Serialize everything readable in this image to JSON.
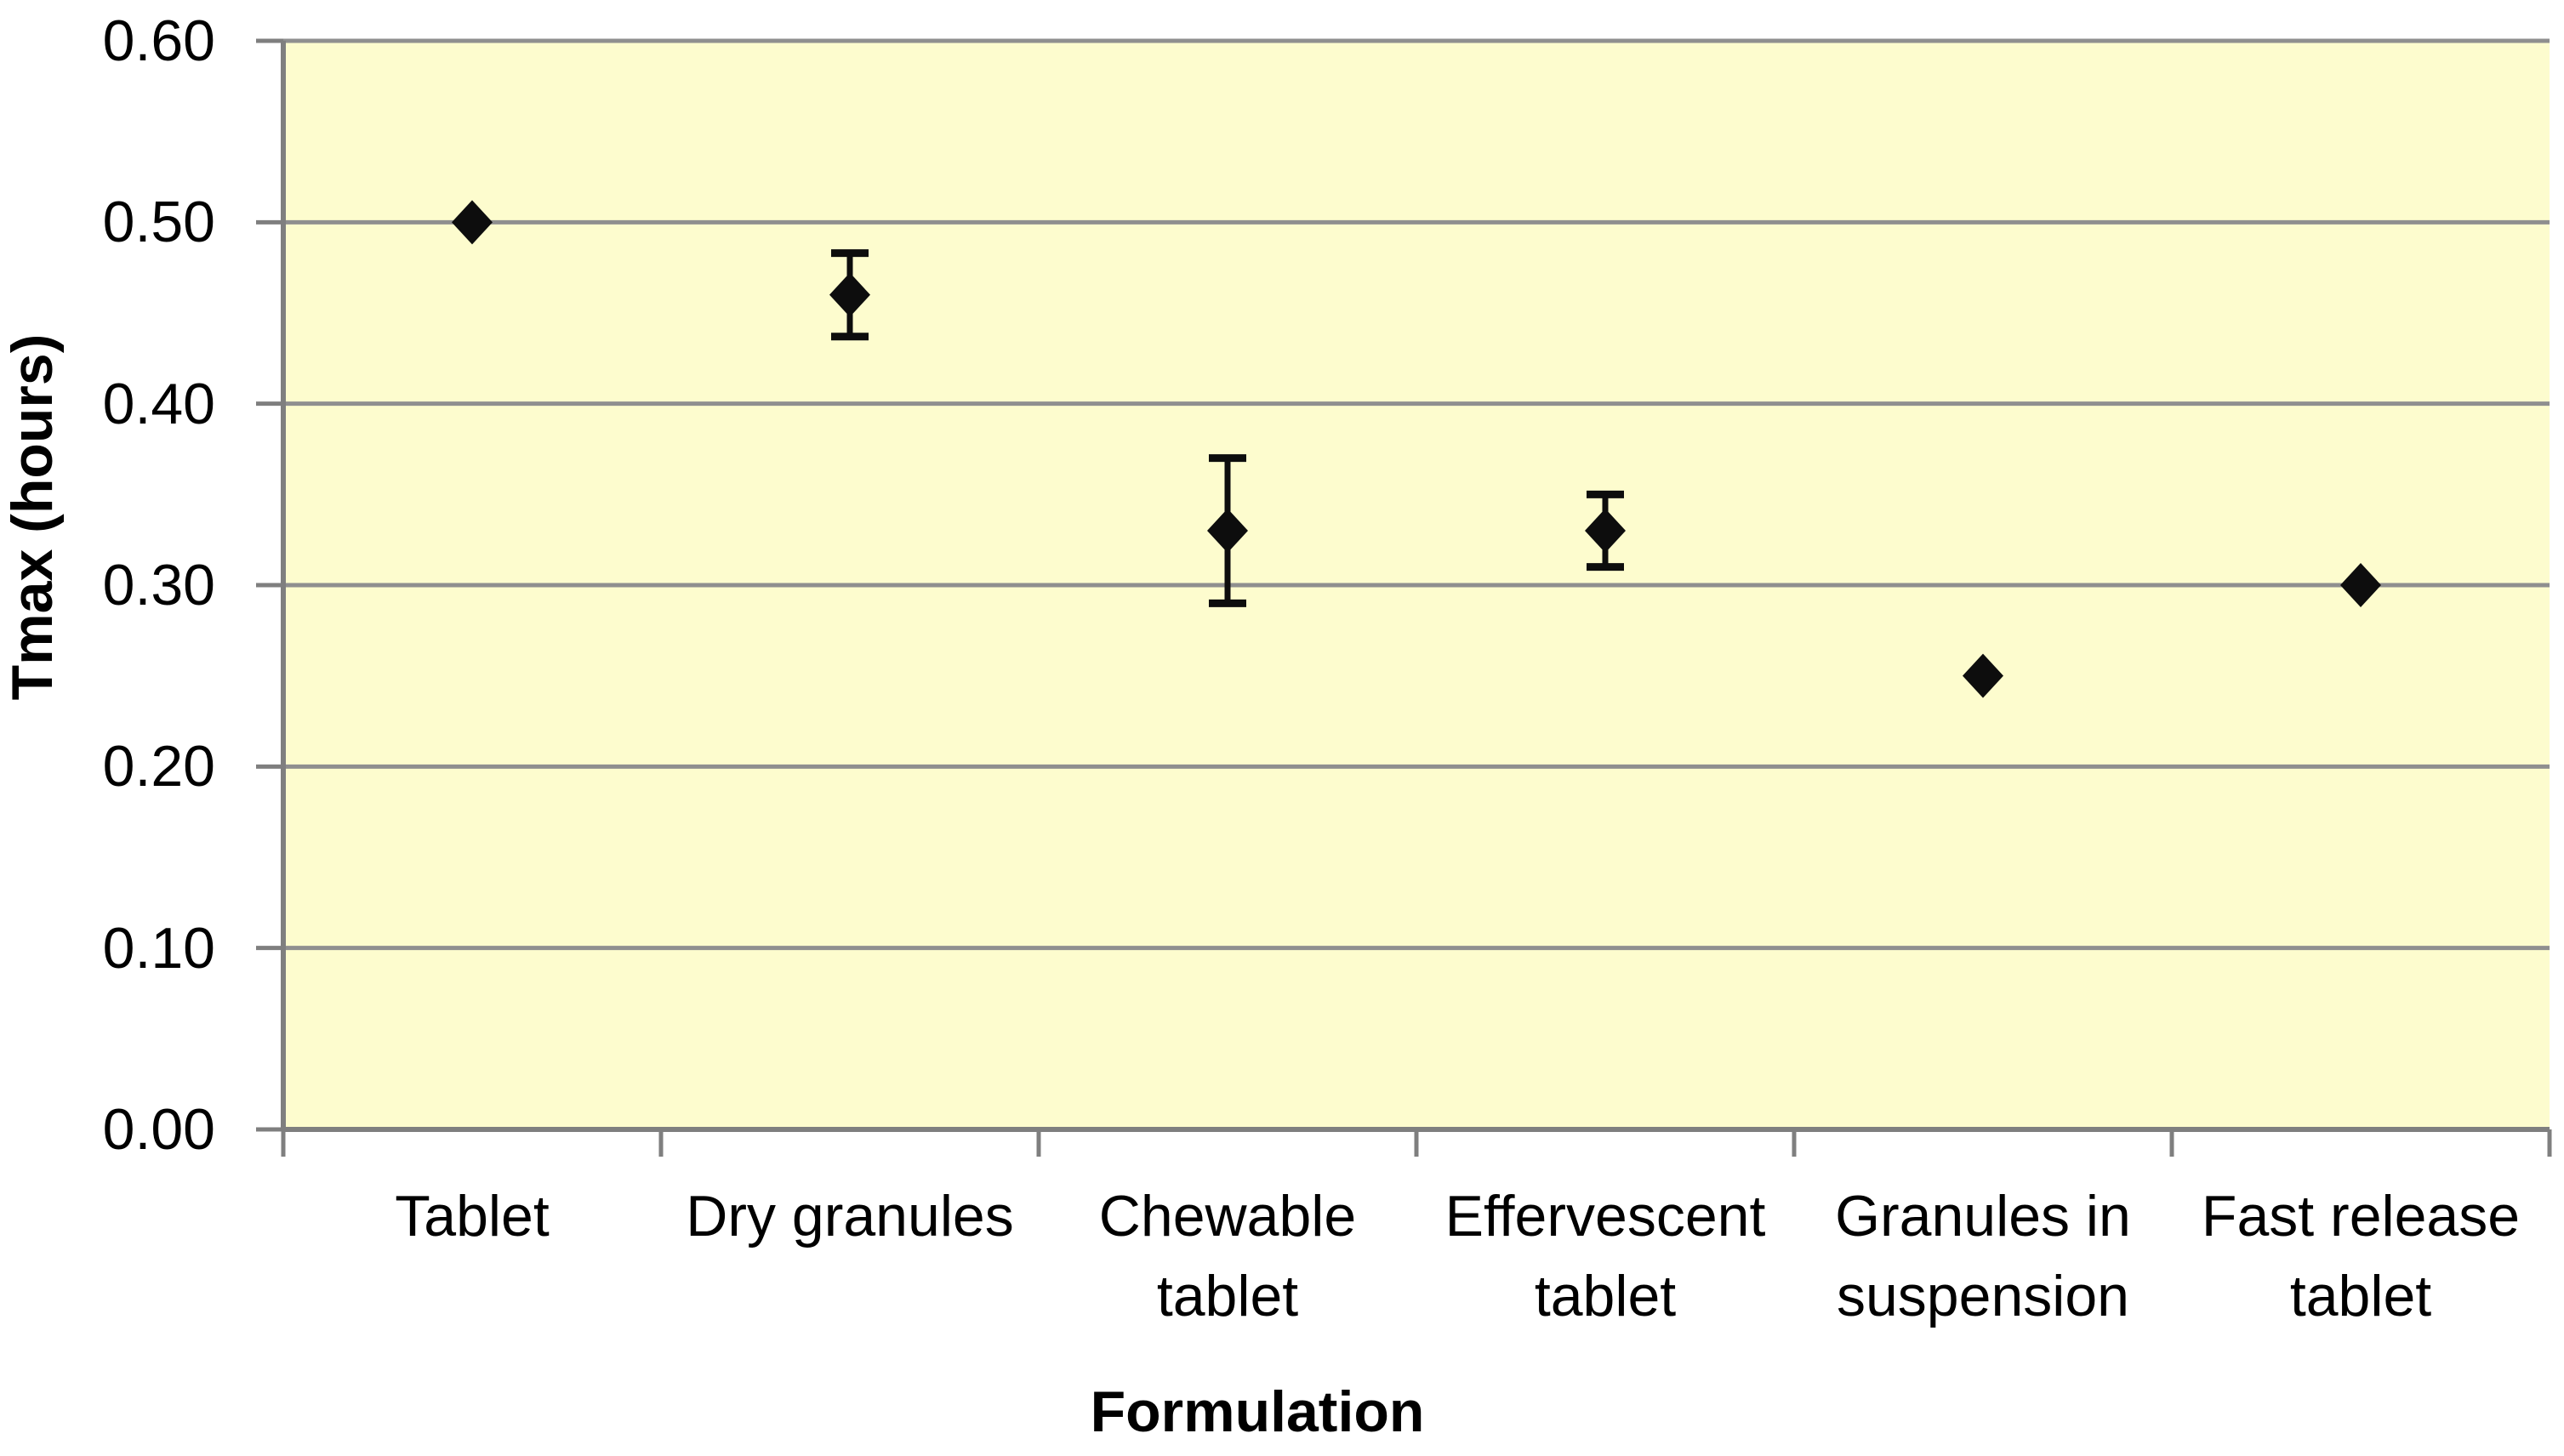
{
  "chart_data": {
    "type": "scatter",
    "title": "",
    "xlabel": "Formulation",
    "ylabel": "Tmax (hours)",
    "ylim": [
      0.0,
      0.6
    ],
    "ytick_step": 0.1,
    "yticks": [
      "0.00",
      "0.10",
      "0.20",
      "0.30",
      "0.40",
      "0.50",
      "0.60"
    ],
    "categories": [
      "Tablet",
      "Dry granules",
      "Chewable tablet",
      "Effervescent tablet",
      "Granules in suspension",
      "Fast release tablet"
    ],
    "category_lines": [
      [
        "Tablet"
      ],
      [
        "Dry granules"
      ],
      [
        "Chewable",
        "tablet"
      ],
      [
        "Effervescent",
        "tablet"
      ],
      [
        "Granules in",
        "suspension"
      ],
      [
        "Fast release",
        "tablet"
      ]
    ],
    "series": [
      {
        "name": "Tmax",
        "marker": "diamond",
        "color": "#0d0d0d",
        "values": [
          0.5,
          0.46,
          0.33,
          0.33,
          0.25,
          0.3
        ],
        "error": [
          0,
          0.023,
          0.04,
          0.02,
          0,
          0
        ]
      }
    ],
    "grid": true,
    "legend": false,
    "colors": {
      "plot_background": "#FDFCCE",
      "gridline": "#8F8F8F",
      "axis": "#7F7F7F",
      "marker": "#0d0d0d"
    }
  }
}
